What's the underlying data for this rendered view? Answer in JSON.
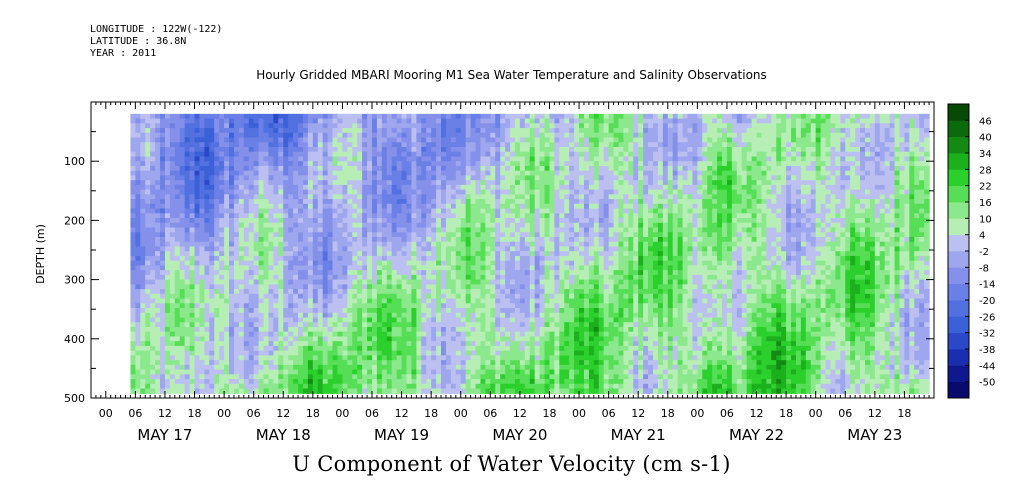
{
  "header": {
    "longitude": "LONGITUDE : 122W(-122)",
    "latitude": "LATITUDE : 36.8N",
    "year": "YEAR : 2011"
  },
  "chart_data": {
    "type": "heatmap",
    "title": "Hourly Gridded MBARI Mooring M1 Sea Water Temperature and Salinity Observations",
    "xlabel": "U Component of Water Velocity (cm s-1)",
    "ylabel": "DEPTH (m)",
    "y_reversed": true,
    "ylim": [
      0,
      500
    ],
    "y_ticks": [
      100,
      200,
      300,
      400,
      500
    ],
    "x_hour_ticks": [
      "00",
      "06",
      "12",
      "18",
      "00",
      "06",
      "12",
      "18",
      "00",
      "06",
      "12",
      "18",
      "00",
      "06",
      "12",
      "18",
      "00",
      "06",
      "12",
      "18",
      "00",
      "06",
      "12",
      "18",
      "00",
      "06",
      "12",
      "18"
    ],
    "x_day_labels": [
      "MAY 17",
      "MAY 18",
      "MAY 19",
      "MAY 20",
      "MAY 21",
      "MAY 22",
      "MAY 23"
    ],
    "x_range_hours": [
      -3,
      168
    ],
    "data_x_range_hours": [
      5,
      167
    ],
    "data_depth_range_m": [
      20,
      488
    ],
    "colorbar": {
      "levels": [
        -50,
        -44,
        -38,
        -32,
        -26,
        -20,
        -14,
        -8,
        -2,
        4,
        10,
        16,
        22,
        28,
        34,
        40,
        46
      ],
      "colors": [
        "#0a0a6e",
        "#101890",
        "#1a2eb0",
        "#2a48c8",
        "#3c60d8",
        "#5270e0",
        "#6a80e6",
        "#8490ea",
        "#9ea6ee",
        "#bcc0f0",
        "#b6eeb6",
        "#8ce88c",
        "#56de56",
        "#2cd02c",
        "#1cb01c",
        "#148a14",
        "#0c6a0c",
        "#064a06"
      ]
    },
    "data_description_levels_by_day": [
      {
        "day": "MAY 17",
        "upper_mean": -18,
        "lower_mean": 8
      },
      {
        "day": "MAY 18",
        "upper_mean": -16,
        "lower_mean": 14
      },
      {
        "day": "MAY 19",
        "upper_mean": -10,
        "lower_mean": 16
      },
      {
        "day": "MAY 20",
        "upper_mean": -2,
        "lower_mean": 14
      },
      {
        "day": "MAY 21",
        "upper_mean": 6,
        "lower_mean": 14
      },
      {
        "day": "MAY 22",
        "upper_mean": 2,
        "lower_mean": 18
      },
      {
        "day": "MAY 23",
        "upper_mean": 8,
        "lower_mean": 12
      }
    ]
  }
}
